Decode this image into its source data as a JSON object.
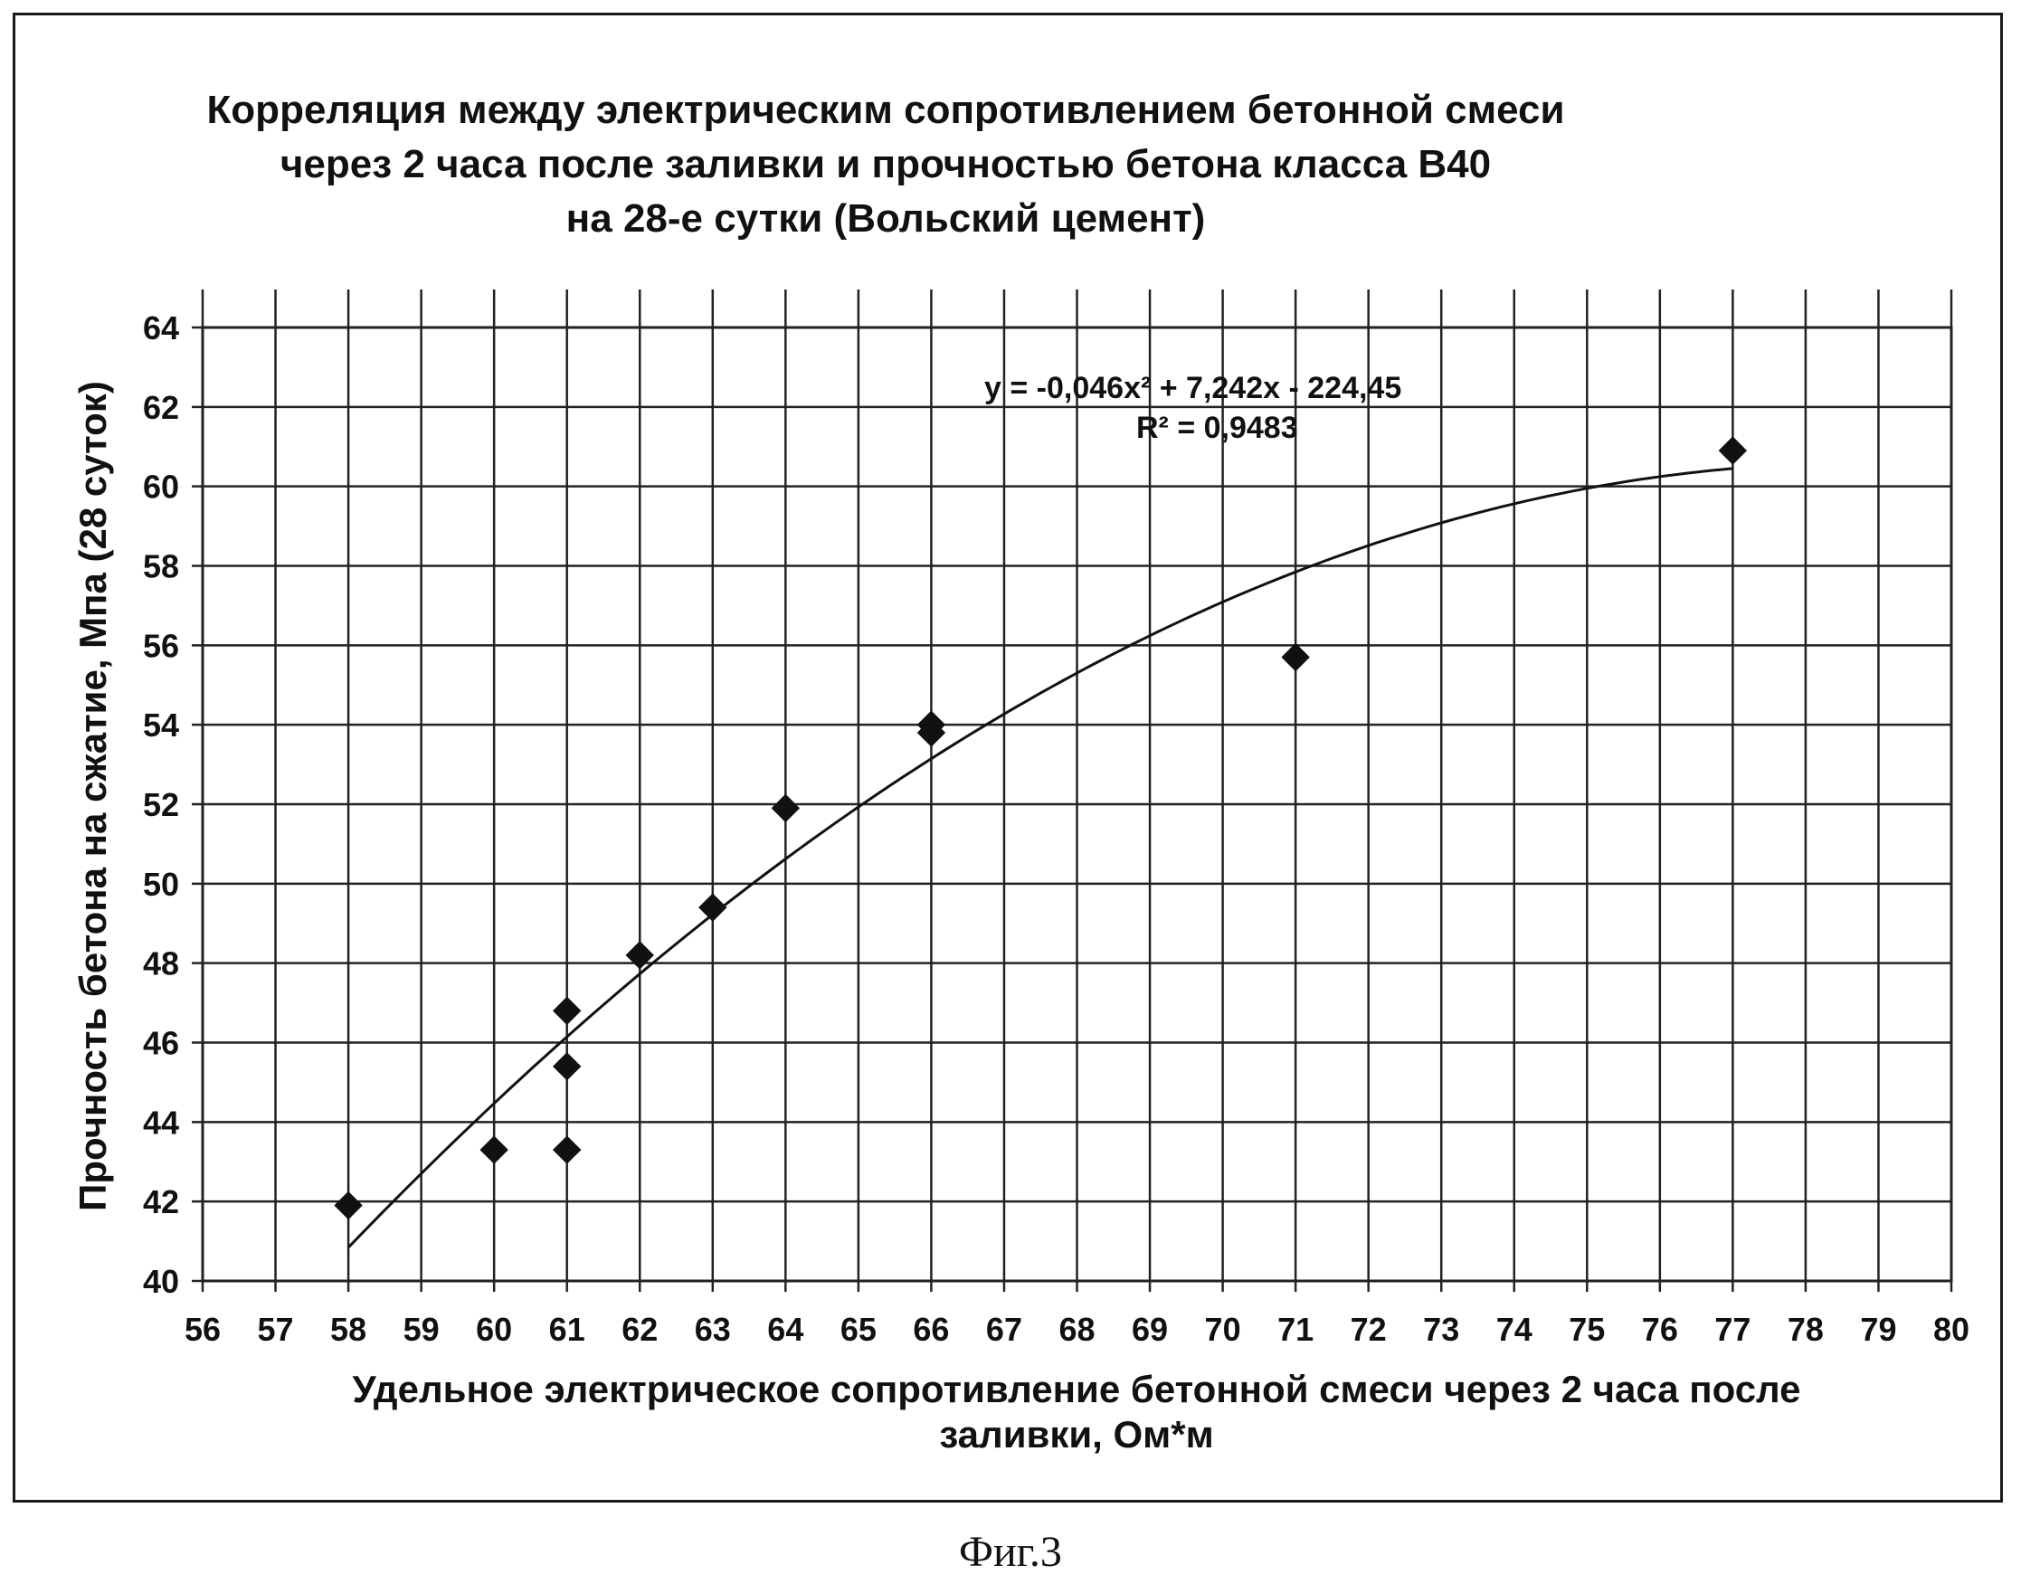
{
  "chart_data": {
    "type": "scatter",
    "title_lines": [
      "Корреляция между электрическим сопротивлением бетонной смеси",
      "через 2 часа после заливки и прочностью бетона класса В40",
      "на 28-е сутки (Вольский цемент)"
    ],
    "xlabel_lines": [
      "Удельное электрическое сопротивление бетонной смеси через 2 часа после",
      "заливки, Ом*м"
    ],
    "ylabel": "Прочность бетона на сжатие, Мпа (28 суток)",
    "xlim": [
      56,
      80
    ],
    "ylim": [
      40,
      64
    ],
    "x_ticks": [
      56,
      57,
      58,
      59,
      60,
      61,
      62,
      63,
      64,
      65,
      66,
      67,
      68,
      69,
      70,
      71,
      72,
      73,
      74,
      75,
      76,
      77,
      78,
      79,
      80
    ],
    "y_ticks": [
      40,
      42,
      44,
      46,
      48,
      50,
      52,
      54,
      56,
      58,
      60,
      62,
      64
    ],
    "grid": true,
    "points": [
      {
        "x": 58,
        "y": 41.9
      },
      {
        "x": 60,
        "y": 43.3
      },
      {
        "x": 61,
        "y": 43.3
      },
      {
        "x": 61,
        "y": 45.4
      },
      {
        "x": 61,
        "y": 46.8
      },
      {
        "x": 62,
        "y": 48.2
      },
      {
        "x": 63,
        "y": 49.4
      },
      {
        "x": 64,
        "y": 51.9
      },
      {
        "x": 66,
        "y": 53.8
      },
      {
        "x": 66,
        "y": 54.0
      },
      {
        "x": 71,
        "y": 55.7
      },
      {
        "x": 77,
        "y": 60.9
      }
    ],
    "trendline": {
      "type": "polynomial",
      "coefficients": [
        -0.046,
        7.242,
        -224.45
      ],
      "x_range": [
        58,
        77
      ],
      "equation": "y = -0,046x² + 7,242x - 224,45",
      "r2": "R² = 0,9483"
    }
  },
  "caption": "Фиг.3"
}
